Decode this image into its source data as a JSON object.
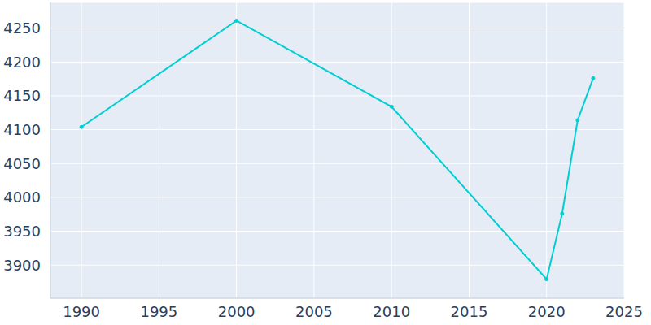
{
  "chart_data": {
    "type": "line",
    "x": [
      1990,
      2000,
      2010,
      2020,
      2021,
      2022,
      2023
    ],
    "values": [
      4104,
      4261,
      4134,
      3879,
      3976,
      4114,
      4176
    ],
    "color": "#00ced1",
    "marker": "circle",
    "xlim": [
      1988,
      2025
    ],
    "xticks": [
      1990,
      1995,
      2000,
      2005,
      2010,
      2015,
      2020,
      2025
    ],
    "ylim": [
      3851,
      4288
    ],
    "yticks": [
      3900,
      3950,
      4000,
      4050,
      4100,
      4150,
      4200,
      4250
    ],
    "grid": true
  }
}
